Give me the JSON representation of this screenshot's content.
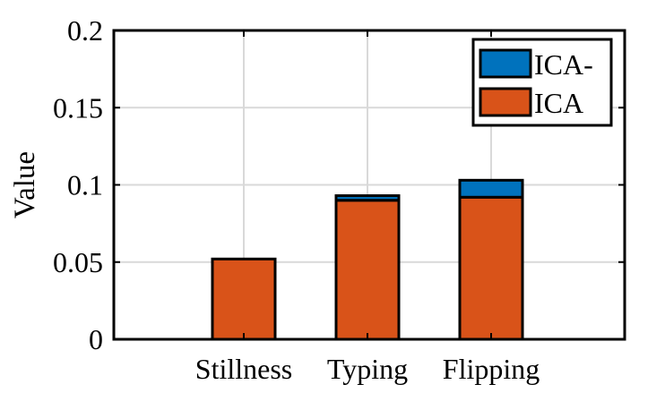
{
  "chart_data": {
    "type": "bar",
    "stacked": true,
    "title": "",
    "xlabel": "",
    "ylabel": "Value",
    "ylim": [
      0,
      0.2
    ],
    "yticks": [
      0,
      0.05,
      0.1,
      0.15,
      0.2
    ],
    "ytick_labels": [
      "0",
      "0.05",
      "0.1",
      "0.15",
      "0.2"
    ],
    "categories": [
      "Stillness",
      "Typing",
      "Flipping"
    ],
    "grid": true,
    "legend_position": "top-right",
    "series": [
      {
        "name": "ICA",
        "color": "#D95319",
        "values": [
          0.052,
          0.09,
          0.092
        ]
      },
      {
        "name": "ICA-",
        "color": "#0072BD",
        "values": [
          0.0,
          0.003,
          0.011
        ]
      }
    ],
    "legend_order": [
      "ICA-",
      "ICA"
    ]
  }
}
